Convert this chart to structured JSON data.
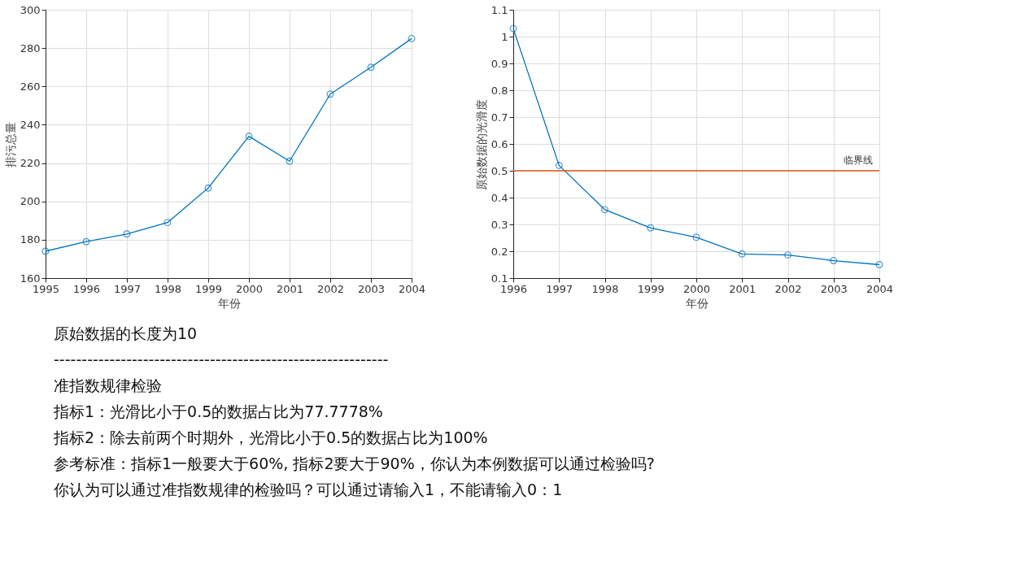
{
  "chart_data": [
    {
      "type": "line",
      "xlabel": "年份",
      "ylabel": "排污总量",
      "x": [
        1995,
        1996,
        1997,
        1998,
        1999,
        2000,
        2001,
        2002,
        2003,
        2004
      ],
      "series": [
        {
          "color": "#0072bd",
          "values": [
            174,
            179,
            183,
            189,
            207,
            234,
            221,
            256,
            270,
            285
          ]
        }
      ],
      "xlim": [
        1995,
        2004
      ],
      "xticks": [
        1995,
        1996,
        1997,
        1998,
        1999,
        2000,
        2001,
        2002,
        2003,
        2004
      ],
      "ylim": [
        160,
        300
      ],
      "yticks": [
        160,
        180,
        200,
        220,
        240,
        260,
        280,
        300
      ],
      "grid": true,
      "marker": "circle",
      "line_style": "solid"
    },
    {
      "type": "line",
      "xlabel": "年份",
      "ylabel": "原始数据的光滑度",
      "x": [
        1996,
        1997,
        1998,
        1999,
        2000,
        2001,
        2002,
        2003,
        2004
      ],
      "series": [
        {
          "color": "#0072bd",
          "values": [
            1.03,
            0.52,
            0.355,
            0.287,
            0.252,
            0.19,
            0.186,
            0.165,
            0.15
          ]
        }
      ],
      "xlim": [
        1996,
        2004
      ],
      "xticks": [
        1996,
        1997,
        1998,
        1999,
        2000,
        2001,
        2002,
        2003,
        2004
      ],
      "ylim": [
        0.1,
        1.1
      ],
      "yticks": [
        0.1,
        0.2,
        0.3,
        0.4,
        0.5,
        0.6,
        0.7,
        0.8,
        0.9,
        1,
        1.1
      ],
      "grid": true,
      "marker": "circle",
      "line_style": "solid",
      "ref_lines": [
        {
          "axis": "y",
          "value": 0.5,
          "label": "临界线",
          "color": "#d95319"
        }
      ]
    },
    {
      "type": "other",
      "annotations": [
        "原始数据的长度为10",
        "------------------------------------------------------------",
        "准指数规律检验",
        "指标1：光滑比小于0.5的数据占比为77.7778%",
        "指标2：除去前两个时期外，光滑比小于0.5的数据占比为100%",
        "参考标准：指标1一般要大于60%, 指标2要大于90%，你认为本例数据可以通过检验吗?",
        "你认为可以通过准指数规律的检验吗？可以通过请输入1，不能请输入0：1"
      ]
    }
  ]
}
